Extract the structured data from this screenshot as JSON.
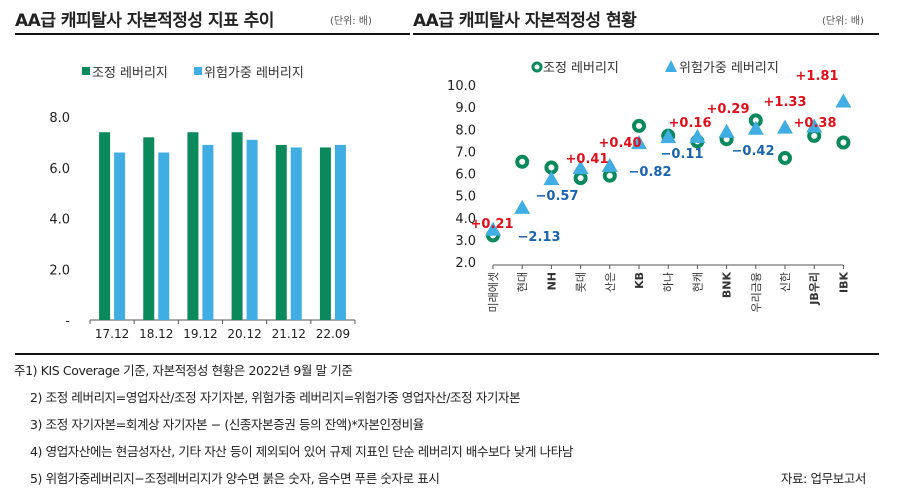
{
  "left": {
    "title": "AA급 캐피탈사 자본적정성 지표 추이",
    "unit": "(단위: 배)"
  },
  "right": {
    "title": "AA급 캐피탈사 자본적정성 현황",
    "unit": "(단위: 배)"
  },
  "colors": {
    "adjusted": "#0a8a5c",
    "risk": "#41aee3",
    "positive": "#e0101a",
    "negative": "#1a63b0"
  },
  "chart_data": [
    {
      "type": "bar",
      "categories": [
        "17.12",
        "18.12",
        "19.12",
        "20.12",
        "21.12",
        "22.09"
      ],
      "series": [
        {
          "name": "조정 레버리지",
          "values": [
            7.4,
            7.2,
            7.4,
            7.4,
            6.9,
            6.8
          ]
        },
        {
          "name": "위험가중 레버리지",
          "values": [
            6.6,
            6.6,
            6.9,
            7.1,
            6.8,
            6.9
          ]
        }
      ],
      "yticks": [
        "-",
        "2.0",
        "4.0",
        "6.0",
        "8.0"
      ],
      "ylim": [
        0,
        8
      ],
      "legend": "top"
    },
    {
      "type": "scatter",
      "categories": [
        "미래에셋",
        "현대",
        "NH",
        "롯데",
        "산은",
        "KB",
        "하나",
        "현캐",
        "BNK",
        "우리금융",
        "신한",
        "JB우리",
        "IBK"
      ],
      "series": [
        {
          "name": "조정 레버리지",
          "marker": "circle",
          "values": [
            3.2,
            6.53,
            6.27,
            5.79,
            5.9,
            8.15,
            7.71,
            7.45,
            7.55,
            8.4,
            6.7,
            7.7,
            7.4
          ]
        },
        {
          "name": "위험가중 레버리지",
          "marker": "triangle",
          "values": [
            3.41,
            4.4,
            5.7,
            6.2,
            6.3,
            7.33,
            7.6,
            7.61,
            7.84,
            7.98,
            8.03,
            8.08,
            9.21
          ]
        }
      ],
      "annotations": [
        "+0.21",
        "−2.13",
        "−0.57",
        "+0.41",
        "+0.40",
        "−0.82",
        "−0.11",
        "+0.16",
        "+0.29",
        "−0.42",
        "+1.33",
        "+0.38",
        "+1.81"
      ],
      "yticks": [
        "2.0",
        "3.0",
        "4.0",
        "5.0",
        "6.0",
        "7.0",
        "8.0",
        "9.0",
        "10.0"
      ],
      "ylim": [
        2,
        10
      ],
      "legend": "top"
    }
  ],
  "notes": [
    "주1) KIS Coverage 기준, 자본적정성 현황은 2022년 9월 말 기준",
    "2) 조정 레버리지=영업자산/조정 자기자본, 위험가중 레버리지=위험가중 영업자산/조정 자기자본",
    "3) 조정 자기자본=회계상 자기자본 − (신종자본증권 등의 잔액)*자본인정비율",
    "4) 영업자산에는 현금성자산, 기타 자산 등이 제외되어 있어 규제 지표인 단순 레버리지 배수보다 낮게 나타남",
    "5) 위험가중레버리지−조정레버리지가 양수면 붉은 숫자, 음수면 푸른 숫자로 표시"
  ],
  "source": "자료: 업무보고서"
}
